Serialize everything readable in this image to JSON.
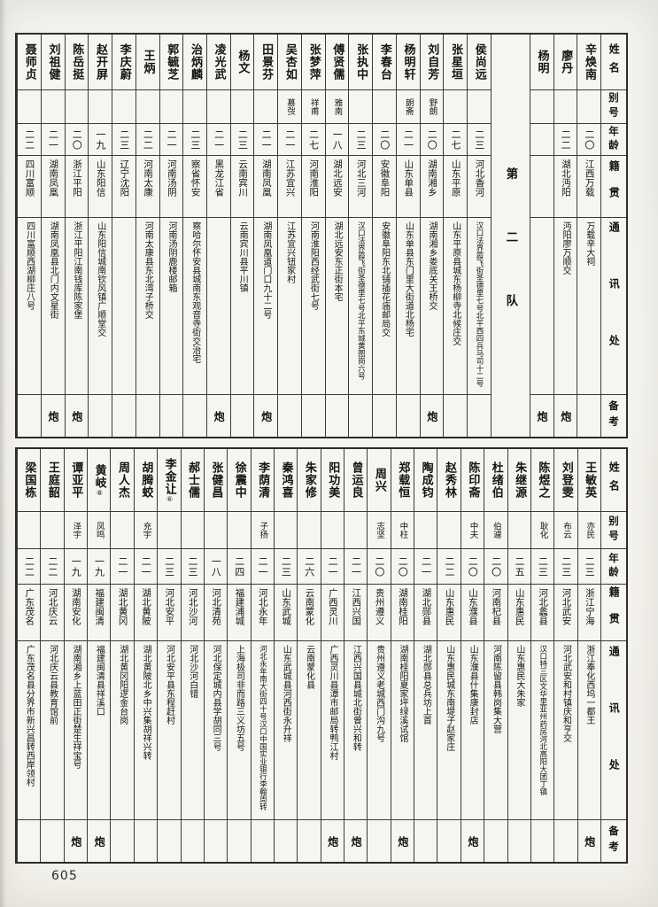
{
  "page": {
    "number": "605"
  },
  "headers": {
    "name": "姓名",
    "alias": "别号",
    "age": "年龄",
    "native": "籍贯",
    "address": "通讯处",
    "remark": "备考"
  },
  "top_table": {
    "divider": {
      "label": "第二队",
      "after_index": 2
    },
    "persons": [
      {
        "name": "辛焕南",
        "alias": "",
        "age": "二〇",
        "native": "江西万载",
        "address": "万载辛大祠",
        "remark": ""
      },
      {
        "name": "廖丹",
        "alias": "",
        "age": "二二",
        "native": "湖北沔阳",
        "address": "沔阳廖万顺交",
        "remark": "炮"
      },
      {
        "name": "杨明",
        "alias": "",
        "age": "",
        "native": "",
        "address": "",
        "remark": "炮"
      },
      {
        "name": "侯尚远",
        "alias": "",
        "age": "二三",
        "native": "河北香河",
        "address": "汉口法界霞飞街圣德里七号北平西四兵马司十二号",
        "remark": ""
      },
      {
        "name": "张星垣",
        "alias": "",
        "age": "二七",
        "native": "山东平原",
        "address": "山东平原县城东杨柳寺北候庄交",
        "remark": ""
      },
      {
        "name": "刘自芳",
        "alias": "野朗",
        "age": "二〇",
        "native": "湖南湘乡",
        "address": "湖南湘乡娄底关王桥交",
        "remark": "炮"
      },
      {
        "name": "杨明轩",
        "alias": "朗斋",
        "age": "二一",
        "native": "山东单县",
        "address": "山东单县东门里大街道北杨宅",
        "remark": ""
      },
      {
        "name": "李春台",
        "alias": "",
        "age": "二〇",
        "native": "安徽阜阳",
        "address": "安徽阜阳东北铺插花庙邮局交",
        "remark": ""
      },
      {
        "name": "张执中",
        "alias": "",
        "age": "二三",
        "native": "河北三河",
        "address": "汉口法界霞飞街圣德里七号北平东城黄图岗六号",
        "remark": ""
      },
      {
        "name": "傅贤儒",
        "alias": "雅南",
        "age": "一八",
        "native": "湖北远安",
        "address": "湖北远安东正街本宅",
        "remark": ""
      },
      {
        "name": "张梦萍",
        "alias": "祥甫",
        "age": "二七",
        "native": "河南淮阳",
        "address": "河南淮阳西经武街七号",
        "remark": ""
      },
      {
        "name": "吴杏如",
        "alias": "慕弢",
        "age": "二一",
        "native": "江苏宜兴",
        "address": "江苏宜兴钮家村",
        "remark": ""
      },
      {
        "name": "田景芬",
        "alias": "",
        "age": "二一",
        "native": "湖南凤凰",
        "address": "湖南凤凰道门口九十二号",
        "remark": "炮"
      },
      {
        "name": "杨文",
        "alias": "",
        "age": "二三",
        "native": "云南宾川",
        "address": "云南宾川县平川镇",
        "remark": ""
      },
      {
        "name": "凌光武",
        "alias": "",
        "age": "二一",
        "native": "黑龙江省",
        "address": "",
        "remark": "炮"
      },
      {
        "name": "治炳麟",
        "alias": "",
        "age": "二三",
        "native": "察省怀安",
        "address": "察哈尔怀安县城南东观音寺街交治宅",
        "remark": ""
      },
      {
        "name": "郭毓芝",
        "alias": "",
        "age": "二一",
        "native": "河南汤阴",
        "address": "河南汤阴鹿楼邮箱",
        "remark": ""
      },
      {
        "name": "王炳",
        "alias": "",
        "age": "二二",
        "native": "河南太康",
        "address": "河南太康县东北湾子桥交",
        "remark": ""
      },
      {
        "name": "李庆蔚",
        "alias": "",
        "age": "二三",
        "native": "辽宁沈阳",
        "address": "",
        "remark": ""
      },
      {
        "name": "赵开屏",
        "alias": "",
        "age": "一九",
        "native": "山东阳信",
        "address": "山东阳信城南钦风镇广顺堂交",
        "remark": ""
      },
      {
        "name": "陈岳挺",
        "alias": "",
        "age": "二〇",
        "native": "浙江平阳",
        "address": "浙江平阳江南钱库陈家堡",
        "remark": "炮"
      },
      {
        "name": "刘祖健",
        "alias": "",
        "age": "二一",
        "native": "湖南凤凰",
        "address": "湖南凤凰县北门内文星街",
        "remark": "炮"
      },
      {
        "name": "聂师贞",
        "alias": "",
        "age": "二二",
        "native": "四川富顺",
        "address": "四川富顺西湖柳庄八号",
        "remark": ""
      }
    ]
  },
  "bottom_table": {
    "persons": [
      {
        "name": "王敏英",
        "alias": "亦民",
        "age": "二三",
        "native": "浙江宁海",
        "address": "浙江奉化西坞一都王",
        "remark": "炮"
      },
      {
        "name": "刘登雯",
        "alias": "布云",
        "age": "二三",
        "native": "河北武安",
        "address": "河北武安和村镇庆和亨交",
        "remark": ""
      },
      {
        "name": "陈煜之",
        "alias": "耿化",
        "age": "二三",
        "native": "河北蠡县",
        "address": "汉口特三区文华里亚州药房河北高阳大团丁镇",
        "remark": ""
      },
      {
        "name": "朱继源",
        "alias": "",
        "age": "二五",
        "native": "山东惠民",
        "address": "山东惠民大朱家",
        "remark": ""
      },
      {
        "name": "杜绪伯",
        "alias": "伯遽",
        "age": "二〇",
        "native": "河南杞县",
        "address": "河南陈留县韩岗集大营",
        "remark": ""
      },
      {
        "name": "陈印斋",
        "alias": "中夫",
        "age": "二〇",
        "native": "山东濮县",
        "address": "山东濮县什集康封店",
        "remark": "炮"
      },
      {
        "name": "赵秀林",
        "alias": "",
        "age": "二二",
        "native": "山东惠民",
        "address": "山东惠民城东南堤子赵家庄",
        "remark": ""
      },
      {
        "name": "陶成钧",
        "alias": "",
        "age": "二一",
        "native": "湖北郧县",
        "address": "湖北郧县总兵坊上首",
        "remark": ""
      },
      {
        "name": "郑载恒",
        "alias": "中柱",
        "age": "二〇",
        "native": "湖南桂阳",
        "address": "湖南桂阳夏家坪绿溪试馆",
        "remark": "炮"
      },
      {
        "name": "周兴",
        "alias": "志坚",
        "age": "二〇",
        "native": "贵州遵义",
        "address": "贵州遵义老城西门沟九号",
        "remark": ""
      },
      {
        "name": "曾运良",
        "alias": "",
        "age": "二一",
        "native": "江西兴国",
        "address": "江西兴国县城北街曾兴和转",
        "remark": "炮"
      },
      {
        "name": "阳功美",
        "alias": "",
        "age": "二一",
        "native": "广西灵川",
        "address": "广西灵川县潭市邮局转鸭江村",
        "remark": "炮"
      },
      {
        "name": "朱家修",
        "alias": "",
        "age": "二六",
        "native": "云南蒙化",
        "address": "云南蒙化县",
        "remark": ""
      },
      {
        "name": "秦鸿喜",
        "alias": "",
        "age": "二三",
        "native": "山东武城",
        "address": "山东武城县河西街永升祥",
        "remark": ""
      },
      {
        "name": "李荫清",
        "alias": "子扬",
        "age": "二一",
        "native": "河北永年",
        "address": "河北永年南大街四十号汉口中国实业银行李翰周转",
        "remark": ""
      },
      {
        "name": "徐震中",
        "alias": "",
        "age": "二四",
        "native": "福建浦城",
        "address": "上海极司非而路三义坊五号",
        "remark": ""
      },
      {
        "name": "张健昌",
        "alias": "",
        "age": "一八",
        "native": "河北清苑",
        "address": "河北保定城内县学胡同三号",
        "remark": ""
      },
      {
        "name": "郝士儒",
        "alias": "",
        "age": "二三",
        "native": "河北沙河",
        "address": "河北沙河白错",
        "remark": ""
      },
      {
        "name": "李金让",
        "note": "⑥",
        "alias": "",
        "age": "二三",
        "native": "河北安平",
        "address": "河北安平县东程赶村",
        "remark": ""
      },
      {
        "name": "胡腾蛟",
        "alias": "充宇",
        "age": "二一",
        "native": "湖北黄陂",
        "address": "湖北黄陂北乡中兴集胡祥兴转",
        "remark": ""
      },
      {
        "name": "周人杰",
        "alias": "",
        "age": "二一",
        "native": "湖北黄冈",
        "address": "湖北黄冈阳逻金台岗",
        "remark": ""
      },
      {
        "name": "黄岐",
        "note": "⑧",
        "alias": "凤鸣",
        "age": "一九",
        "native": "福建闽清",
        "address": "福建闽清县祥溪口",
        "remark": "炮"
      },
      {
        "name": "谭亚平",
        "alias": "泽宇",
        "age": "一九",
        "native": "湖南安化",
        "address": "湖南湘乡上蓝田正街楚生祥宝号",
        "remark": "炮"
      },
      {
        "name": "王庭韶",
        "alias": "",
        "age": "二二",
        "native": "河北庆云",
        "address": "河北庆云县教育馆前",
        "remark": ""
      },
      {
        "name": "梁国栋",
        "alias": "",
        "age": "二二",
        "native": "广东茂名",
        "address": "广东茂名县分界市新兴昌转西岸领村",
        "remark": ""
      }
    ]
  }
}
